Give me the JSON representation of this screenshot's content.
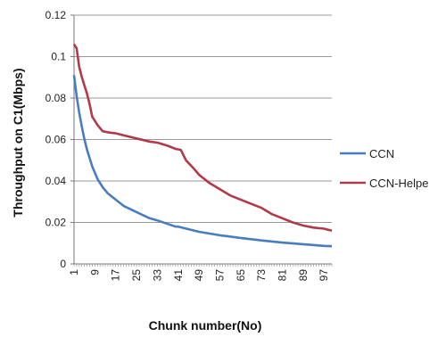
{
  "chart_data": {
    "type": "line",
    "title": "",
    "xlabel": "Chunk number(No)",
    "ylabel": "Throughput on C1(Mbps)",
    "xlim": [
      1,
      100
    ],
    "ylim": [
      0,
      0.12
    ],
    "grid": true,
    "legend_position": "right",
    "x_ticks": [
      1,
      9,
      17,
      25,
      33,
      41,
      49,
      57,
      65,
      73,
      81,
      89,
      97
    ],
    "y_ticks": [
      "0",
      "0.02",
      "0.04",
      "0.06",
      "0.08",
      "0.1",
      "0.12"
    ],
    "y_tick_values": [
      0,
      0.02,
      0.04,
      0.06,
      0.08,
      0.1,
      0.12
    ],
    "series": [
      {
        "name": "CCN",
        "color": "#4a7dbf",
        "x": [
          1,
          2,
          3,
          4,
          5,
          6,
          7,
          8,
          9,
          10,
          12,
          14,
          17,
          20,
          25,
          30,
          33,
          40,
          41,
          49,
          57,
          65,
          73,
          81,
          89,
          97,
          100
        ],
        "y": [
          0.091,
          0.081,
          0.073,
          0.066,
          0.06,
          0.055,
          0.051,
          0.047,
          0.044,
          0.041,
          0.037,
          0.034,
          0.031,
          0.028,
          0.025,
          0.022,
          0.021,
          0.018,
          0.018,
          0.0155,
          0.0138,
          0.0125,
          0.0113,
          0.0103,
          0.0095,
          0.0087,
          0.0085
        ]
      },
      {
        "name": "CCN-Helpe",
        "color": "#b03a4a",
        "x": [
          1,
          2,
          3,
          4,
          5,
          6,
          7,
          8,
          9,
          10,
          12,
          14,
          17,
          20,
          25,
          30,
          33,
          37,
          40,
          42,
          44,
          47,
          49,
          53,
          57,
          61,
          65,
          69,
          73,
          77,
          81,
          85,
          89,
          93,
          97,
          100
        ],
        "y": [
          0.106,
          0.104,
          0.095,
          0.09,
          0.086,
          0.082,
          0.077,
          0.071,
          0.069,
          0.067,
          0.064,
          0.0635,
          0.063,
          0.062,
          0.0605,
          0.059,
          0.0585,
          0.057,
          0.0555,
          0.055,
          0.05,
          0.046,
          0.043,
          0.039,
          0.036,
          0.033,
          0.031,
          0.029,
          0.027,
          0.024,
          0.022,
          0.02,
          0.0185,
          0.0175,
          0.017,
          0.016
        ]
      }
    ]
  }
}
